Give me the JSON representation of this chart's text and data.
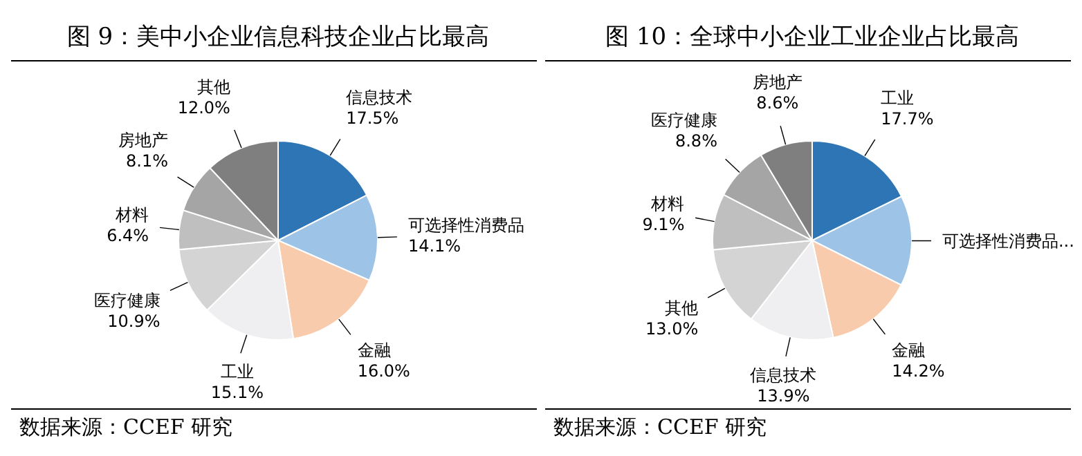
{
  "chart_data": [
    {
      "type": "pie",
      "title": "图 9：美中小企业信息科技企业占比最高",
      "categories": [
        "信息技术",
        "可选择性消费品",
        "金融",
        "工业",
        "医疗健康",
        "材料",
        "房地产",
        "其他"
      ],
      "values": [
        17.5,
        14.1,
        16.0,
        15.1,
        10.9,
        6.4,
        8.1,
        12.0
      ],
      "value_labels": [
        "17.5%",
        "14.1%",
        "16.0%",
        "15.1%",
        "10.9%",
        "6.4%",
        "8.1%",
        "12.0%"
      ],
      "colors": [
        "#2e75b6",
        "#9dc3e6",
        "#f8cbad",
        "#efeff1",
        "#d4d4d4",
        "#bfbfbf",
        "#a5a5a5",
        "#7f7f7f"
      ],
      "annotations": [
        "数据来源：CCEF 研究"
      ]
    },
    {
      "type": "pie",
      "title": "图 10：全球中小企业工业企业占比最高",
      "categories": [
        "工业",
        "可选择性消费品...",
        "金融",
        "信息技术",
        "其他",
        "材料",
        "医疗健康",
        "房地产"
      ],
      "values": [
        17.7,
        14.7,
        14.2,
        13.9,
        13.0,
        9.1,
        8.8,
        8.6
      ],
      "value_labels": [
        "17.7%",
        null,
        "14.2%",
        "13.9%",
        "13.0%",
        "9.1%",
        "8.8%",
        "8.6%"
      ],
      "colors": [
        "#2e75b6",
        "#9dc3e6",
        "#f8cbad",
        "#efeff1",
        "#d4d4d4",
        "#bfbfbf",
        "#a5a5a5",
        "#7f7f7f"
      ],
      "annotations": [
        "数据来源：CCEF 研究"
      ]
    }
  ]
}
